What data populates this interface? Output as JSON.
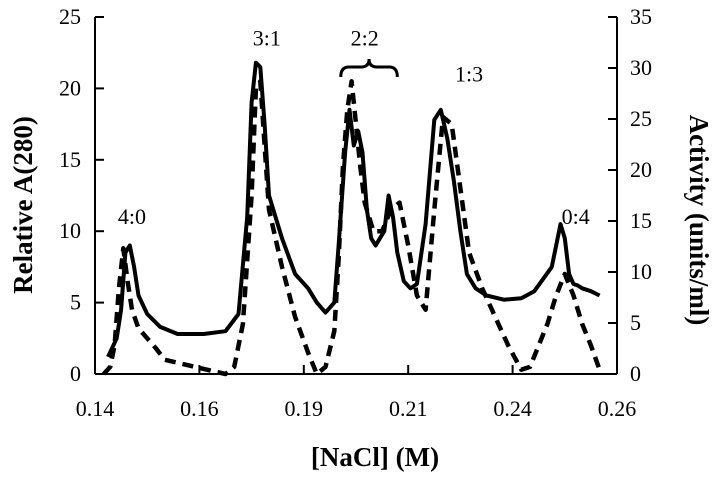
{
  "chart_data": {
    "type": "line",
    "title": "",
    "xlabel": "[NaCl]  (M)",
    "ylabel_left": "Relative  A(280)",
    "ylabel_right": "Activity  (units/ml)",
    "x_ticks": [
      "0.14",
      "0.16",
      "0.19",
      "0.21",
      "0.24",
      "0.26"
    ],
    "y_left_ticks": [
      "0",
      "5",
      "10",
      "15",
      "20",
      "25"
    ],
    "y_right_ticks": [
      "0",
      "5",
      "10",
      "15",
      "20",
      "25",
      "30",
      "35"
    ],
    "xlim": [
      0.14,
      0.26
    ],
    "ylim_left": [
      0,
      25
    ],
    "ylim_right": [
      0,
      35
    ],
    "grid": false,
    "legend": "none",
    "peak_labels": [
      {
        "text": "4:0",
        "x": 0.1485,
        "y": 10.5
      },
      {
        "text": "3:1",
        "x": 0.1795,
        "y": 23.0
      },
      {
        "text": "2:2",
        "x": 0.202,
        "y": 23.0
      },
      {
        "text": "1:3",
        "x": 0.226,
        "y": 20.5
      },
      {
        "text": "0:4",
        "x": 0.2505,
        "y": 10.5
      }
    ],
    "bracket": {
      "x_from": 0.1965,
      "x_to": 0.2095,
      "y": 21.5
    },
    "series": [
      {
        "style": "solid",
        "axis": "left",
        "color": "#000000",
        "x": [
          0.143,
          0.145,
          0.146,
          0.147,
          0.148,
          0.149,
          0.15,
          0.152,
          0.155,
          0.159,
          0.165,
          0.17,
          0.173,
          0.175,
          0.176,
          0.177,
          0.178,
          0.179,
          0.18,
          0.183,
          0.186,
          0.189,
          0.191,
          0.193,
          0.195,
          0.196,
          0.1975,
          0.1985,
          0.1995,
          0.2005,
          0.2015,
          0.2025,
          0.2035,
          0.2045,
          0.2055,
          0.2065,
          0.2075,
          0.2085,
          0.2095,
          0.211,
          0.2125,
          0.214,
          0.216,
          0.218,
          0.2195,
          0.221,
          0.2225,
          0.224,
          0.2255,
          0.2275,
          0.23,
          0.234,
          0.238,
          0.241,
          0.245,
          0.247,
          0.248,
          0.249,
          0.25,
          0.251,
          0.252,
          0.254,
          0.256
        ],
        "y": [
          1.2,
          2.5,
          4.5,
          8.5,
          9.0,
          7.5,
          5.5,
          4.2,
          3.3,
          2.8,
          2.8,
          3.0,
          4.2,
          11.0,
          19.0,
          21.8,
          21.5,
          17.5,
          12.5,
          9.5,
          7.0,
          6.0,
          5.0,
          4.3,
          5.0,
          9.0,
          15.5,
          18.5,
          16.0,
          17.0,
          15.5,
          11.5,
          9.5,
          9.0,
          9.5,
          10.0,
          12.5,
          11.0,
          8.5,
          6.5,
          6.0,
          6.3,
          10.5,
          17.8,
          18.5,
          16.5,
          13.5,
          10.0,
          7.0,
          6.0,
          5.5,
          5.2,
          5.3,
          5.8,
          7.5,
          10.5,
          9.5,
          7.0,
          6.3,
          6.2,
          6.0,
          5.8,
          5.5
        ]
      },
      {
        "style": "dashed",
        "axis": "left",
        "color": "#000000",
        "x": [
          0.142,
          0.1435,
          0.1445,
          0.1455,
          0.1465,
          0.1475,
          0.1485,
          0.15,
          0.152,
          0.154,
          0.156,
          0.17,
          0.172,
          0.174,
          0.176,
          0.177,
          0.178,
          0.179,
          0.18,
          0.183,
          0.186,
          0.189,
          0.191,
          0.193,
          0.195,
          0.196,
          0.197,
          0.198,
          0.199,
          0.2,
          0.201,
          0.202,
          0.203,
          0.204,
          0.206,
          0.208,
          0.21,
          0.212,
          0.214,
          0.216,
          0.218,
          0.22,
          0.222,
          0.224,
          0.226,
          0.229,
          0.232,
          0.235,
          0.238,
          0.24,
          0.242,
          0.244,
          0.246,
          0.248,
          0.25,
          0.252,
          0.254,
          0.256
        ],
        "y": [
          0.0,
          0.5,
          2.0,
          6.0,
          8.8,
          6.5,
          4.5,
          3.2,
          2.5,
          1.8,
          1.0,
          0.0,
          0.5,
          3.5,
          12.5,
          20.0,
          20.5,
          16.0,
          11.5,
          7.5,
          4.0,
          1.5,
          0.0,
          0.5,
          3.0,
          8.0,
          14.5,
          18.5,
          20.5,
          17.5,
          14.5,
          12.0,
          11.0,
          10.0,
          10.0,
          11.5,
          12.0,
          9.0,
          5.5,
          4.5,
          11.5,
          18.0,
          17.5,
          13.0,
          8.5,
          6.0,
          4.0,
          2.0,
          0.3,
          0.5,
          2.0,
          3.5,
          5.5,
          7.0,
          5.5,
          3.5,
          2.0,
          0.3
        ]
      }
    ]
  }
}
